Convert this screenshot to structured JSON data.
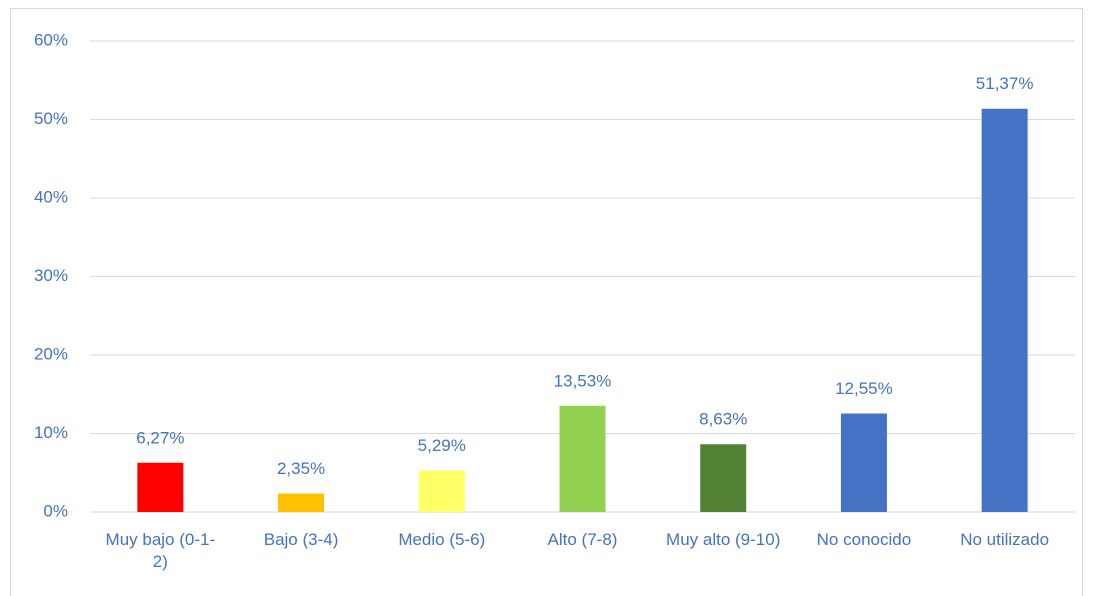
{
  "chart_data": {
    "type": "bar",
    "categories": [
      "Muy bajo (0-1-2)",
      "Bajo (3-4)",
      "Medio (5-6)",
      "Alto (7-8)",
      "Muy alto (9-10)",
      "No conocido",
      "No utilizado"
    ],
    "values": [
      6.27,
      2.35,
      5.29,
      13.53,
      8.63,
      12.55,
      51.37
    ],
    "value_labels": [
      "6,27%",
      "2,35%",
      "5,29%",
      "13,53%",
      "8,63%",
      "12,55%",
      "51,37%"
    ],
    "colors": [
      "#ff0000",
      "#ffc000",
      "#ffff66",
      "#92d050",
      "#548235",
      "#4472c4",
      "#4472c4"
    ],
    "ylim": [
      0,
      60
    ],
    "yticks": [
      {
        "value": 0,
        "label": "0%"
      },
      {
        "value": 10,
        "label": "10%"
      },
      {
        "value": 20,
        "label": "20%"
      },
      {
        "value": 30,
        "label": "30%"
      },
      {
        "value": 40,
        "label": "40%"
      },
      {
        "value": 50,
        "label": "50%"
      },
      {
        "value": 60,
        "label": "60%"
      }
    ],
    "grid": true
  }
}
